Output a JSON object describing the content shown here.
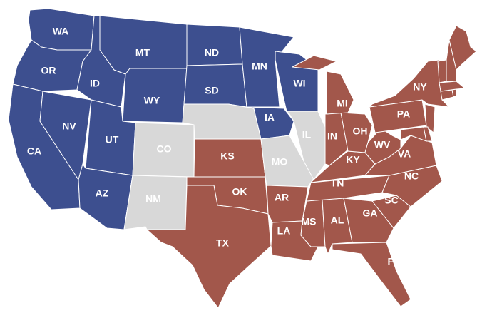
{
  "colors": {
    "blue": "#3d4f8f",
    "red": "#a2574b",
    "gray": "#d8d8d8"
  },
  "states": [
    {
      "abbr": "WA",
      "group": "blue",
      "label": "WA"
    },
    {
      "abbr": "OR",
      "group": "blue",
      "label": "OR"
    },
    {
      "abbr": "CA",
      "group": "blue",
      "label": "CA"
    },
    {
      "abbr": "NV",
      "group": "blue",
      "label": "NV"
    },
    {
      "abbr": "ID",
      "group": "blue",
      "label": "ID"
    },
    {
      "abbr": "MT",
      "group": "blue",
      "label": "MT"
    },
    {
      "abbr": "WY",
      "group": "blue",
      "label": "WY"
    },
    {
      "abbr": "UT",
      "group": "blue",
      "label": "UT"
    },
    {
      "abbr": "AZ",
      "group": "blue",
      "label": "AZ"
    },
    {
      "abbr": "CO",
      "group": "gray",
      "label": "CO"
    },
    {
      "abbr": "NM",
      "group": "gray",
      "label": "NM"
    },
    {
      "abbr": "ND",
      "group": "blue",
      "label": "ND"
    },
    {
      "abbr": "SD",
      "group": "blue",
      "label": "SD"
    },
    {
      "abbr": "NE",
      "group": "gray",
      "label": ""
    },
    {
      "abbr": "KS",
      "group": "red",
      "label": "KS"
    },
    {
      "abbr": "OK",
      "group": "red",
      "label": "OK"
    },
    {
      "abbr": "TX",
      "group": "red",
      "label": "TX"
    },
    {
      "abbr": "MN",
      "group": "blue",
      "label": "MN"
    },
    {
      "abbr": "IA",
      "group": "blue",
      "label": "IA"
    },
    {
      "abbr": "WI",
      "group": "blue",
      "label": "WI"
    },
    {
      "abbr": "MO",
      "group": "gray",
      "label": "MO"
    },
    {
      "abbr": "IL",
      "group": "gray",
      "label": "IL"
    },
    {
      "abbr": "AR",
      "group": "red",
      "label": "AR"
    },
    {
      "abbr": "LA",
      "group": "red",
      "label": "LA"
    },
    {
      "abbr": "MS",
      "group": "red",
      "label": "MS"
    },
    {
      "abbr": "AL",
      "group": "red",
      "label": "AL"
    },
    {
      "abbr": "TN",
      "group": "red",
      "label": "TN"
    },
    {
      "abbr": "KY",
      "group": "red",
      "label": "KY"
    },
    {
      "abbr": "IN",
      "group": "red",
      "label": "IN"
    },
    {
      "abbr": "OH",
      "group": "red",
      "label": "OH"
    },
    {
      "abbr": "MI",
      "group": "red",
      "label": "MI"
    },
    {
      "abbr": "GA",
      "group": "red",
      "label": "GA"
    },
    {
      "abbr": "FL",
      "group": "red",
      "label": "FL"
    },
    {
      "abbr": "SC",
      "group": "red",
      "label": "SC"
    },
    {
      "abbr": "NC",
      "group": "red",
      "label": "NC"
    },
    {
      "abbr": "VA",
      "group": "red",
      "label": "VA"
    },
    {
      "abbr": "WV",
      "group": "red",
      "label": "WV"
    },
    {
      "abbr": "PA",
      "group": "red",
      "label": "PA"
    },
    {
      "abbr": "NY",
      "group": "red",
      "label": "NY"
    },
    {
      "abbr": "NJ",
      "group": "red",
      "label": ""
    },
    {
      "abbr": "MD",
      "group": "red",
      "label": ""
    },
    {
      "abbr": "DE",
      "group": "red",
      "label": ""
    },
    {
      "abbr": "CT",
      "group": "red",
      "label": ""
    },
    {
      "abbr": "RI",
      "group": "red",
      "label": ""
    },
    {
      "abbr": "MA",
      "group": "red",
      "label": ""
    },
    {
      "abbr": "VT",
      "group": "red",
      "label": ""
    },
    {
      "abbr": "NH",
      "group": "red",
      "label": ""
    },
    {
      "abbr": "ME",
      "group": "red",
      "label": ""
    }
  ]
}
